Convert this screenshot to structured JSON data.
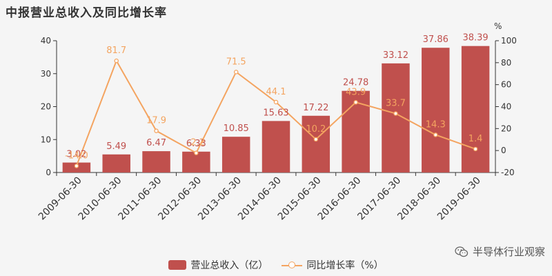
{
  "title": "中报营业总收入及同比增长率",
  "right_axis_unit": "%",
  "watermark": "半导体行业观察",
  "colors": {
    "bar": "#c0504d",
    "line": "#f4a460",
    "axis": "#333333"
  },
  "legend": {
    "bar_label": "营业总收入（亿）",
    "line_label": "同比增长率（%）"
  },
  "chart_data": {
    "type": "bar",
    "categories": [
      "2009-06-30",
      "2010-06-30",
      "2011-06-30",
      "2012-06-30",
      "2013-06-30",
      "2014-06-30",
      "2015-06-30",
      "2016-06-30",
      "2017-06-30",
      "2018-06-30",
      "2019-06-30"
    ],
    "series": [
      {
        "name": "营业总收入（亿）",
        "type": "bar",
        "axis": "left",
        "values": [
          3.02,
          5.49,
          6.47,
          6.33,
          10.85,
          15.63,
          17.22,
          24.78,
          33.12,
          37.86,
          38.39
        ]
      },
      {
        "name": "同比增长率（%）",
        "type": "line",
        "axis": "right",
        "values": [
          -14.0,
          81.7,
          17.9,
          -2.2,
          71.5,
          44.1,
          10.2,
          43.9,
          33.7,
          14.3,
          1.4
        ],
        "labels": [
          "-14.0",
          "81.7",
          "17.9",
          "-2.2",
          "71.5",
          "44.1",
          "10.2",
          "43.9",
          "33.7",
          "14.3",
          "1.4"
        ]
      }
    ],
    "ylim_left": [
      0,
      40
    ],
    "yticks_left": [
      0,
      10,
      20,
      30,
      40
    ],
    "ylim_right": [
      -20,
      100
    ],
    "yticks_right": [
      -20,
      0,
      20,
      40,
      60,
      80,
      100
    ],
    "grid": false,
    "legend_position": "bottom-center"
  }
}
